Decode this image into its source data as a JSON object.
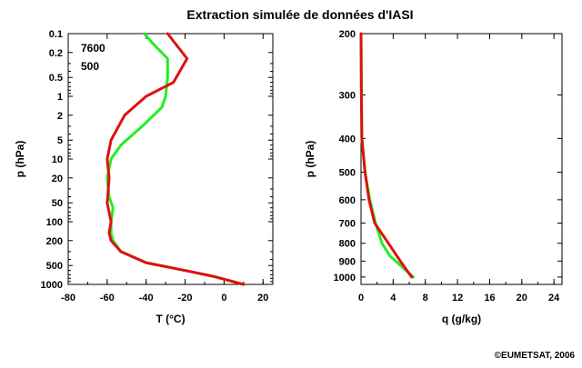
{
  "title": "Extraction simulée de données d'IASI",
  "copyright": "©EUMETSAT, 2006",
  "colors": {
    "green": "#22ee22",
    "red": "#dd1111"
  },
  "chart_data": [
    {
      "type": "line",
      "xlabel": "T (°C)",
      "ylabel": "p (hPa)",
      "xlim": [
        -80,
        25
      ],
      "ylim": [
        1000,
        0.1
      ],
      "yscale": "log",
      "xticks": [
        -80,
        -60,
        -40,
        -20,
        0,
        20
      ],
      "yticks": [
        0.1,
        0.2,
        0.5,
        1,
        2,
        5,
        10,
        20,
        50,
        100,
        200,
        500,
        1000
      ],
      "annotations": [
        "7600",
        "500"
      ],
      "series": [
        {
          "color": "green",
          "points": [
            [
              -41,
              0.1
            ],
            [
              -36,
              0.15
            ],
            [
              -29,
              0.25
            ],
            [
              -29,
              0.5
            ],
            [
              -30,
              1
            ],
            [
              -32,
              1.5
            ],
            [
              -42,
              3
            ],
            [
              -53,
              6
            ],
            [
              -58,
              10
            ],
            [
              -60,
              20
            ],
            [
              -59,
              40
            ],
            [
              -57,
              60
            ],
            [
              -58,
              100
            ],
            [
              -58,
              150
            ],
            [
              -57,
              200
            ],
            [
              -53,
              300
            ],
            [
              -40,
              450
            ],
            [
              -20,
              600
            ],
            [
              -5,
              750
            ],
            [
              10,
              1000
            ]
          ]
        },
        {
          "color": "red",
          "points": [
            [
              -29,
              0.1
            ],
            [
              -19,
              0.25
            ],
            [
              -26,
              0.6
            ],
            [
              -40,
              1
            ],
            [
              -51,
              2
            ],
            [
              -58,
              5
            ],
            [
              -60,
              10
            ],
            [
              -59,
              20
            ],
            [
              -60,
              50
            ],
            [
              -58,
              100
            ],
            [
              -59,
              150
            ],
            [
              -58,
              200
            ],
            [
              -53,
              300
            ],
            [
              -40,
              450
            ],
            [
              -20,
              600
            ],
            [
              -5,
              750
            ],
            [
              10,
              1000
            ]
          ]
        }
      ]
    },
    {
      "type": "line",
      "xlabel": "q (g/kg)",
      "ylabel": "p (hPa)",
      "xlim": [
        0,
        25
      ],
      "ylim": [
        1050,
        200
      ],
      "yscale": "log",
      "xticks": [
        0,
        4,
        8,
        12,
        16,
        20,
        24
      ],
      "yticks": [
        200,
        300,
        400,
        500,
        600,
        700,
        800,
        900,
        1000
      ],
      "series": [
        {
          "color": "green",
          "points": [
            [
              0,
              200
            ],
            [
              0.05,
              300
            ],
            [
              0.1,
              400
            ],
            [
              0.5,
              500
            ],
            [
              1.1,
              600
            ],
            [
              1.8,
              700
            ],
            [
              2.6,
              800
            ],
            [
              3.6,
              870
            ],
            [
              5,
              930
            ],
            [
              6.5,
              1000
            ]
          ]
        },
        {
          "color": "red",
          "points": [
            [
              0,
              200
            ],
            [
              0.05,
              300
            ],
            [
              0.1,
              400
            ],
            [
              0.5,
              500
            ],
            [
              1.0,
              600
            ],
            [
              1.7,
              700
            ],
            [
              3.4,
              800
            ],
            [
              4.6,
              880
            ],
            [
              5.6,
              950
            ],
            [
              6.3,
              1000
            ]
          ]
        }
      ]
    }
  ]
}
